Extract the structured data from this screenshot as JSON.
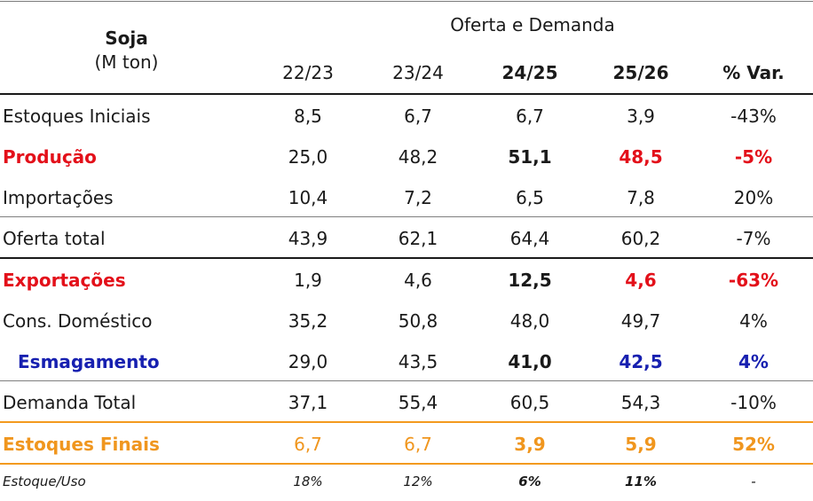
{
  "header": {
    "title": "Soja",
    "unit": "(M ton)",
    "group": "Oferta e Demanda",
    "columns": [
      "22/23",
      "23/24",
      "24/25",
      "25/26",
      "% Var."
    ]
  },
  "rows": [
    {
      "label": "Estoques Iniciais",
      "values": [
        "8,5",
        "6,7",
        "6,7",
        "3,9",
        "-43%"
      ]
    },
    {
      "label": "Produção",
      "values": [
        "25,0",
        "48,2",
        "51,1",
        "48,5",
        "-5%"
      ]
    },
    {
      "label": "Importações",
      "values": [
        "10,4",
        "7,2",
        "6,5",
        "7,8",
        "20%"
      ]
    },
    {
      "label": "Oferta total",
      "values": [
        "43,9",
        "62,1",
        "64,4",
        "60,2",
        "-7%"
      ]
    },
    {
      "label": "Exportações",
      "values": [
        "1,9",
        "4,6",
        "12,5",
        "4,6",
        "-63%"
      ]
    },
    {
      "label": "Cons. Doméstico",
      "values": [
        "35,2",
        "50,8",
        "48,0",
        "49,7",
        "4%"
      ]
    },
    {
      "label": "Esmagamento",
      "values": [
        "29,0",
        "43,5",
        "41,0",
        "42,5",
        "4%"
      ]
    },
    {
      "label": "Demanda Total",
      "values": [
        "37,1",
        "55,4",
        "60,5",
        "54,3",
        "-10%"
      ]
    },
    {
      "label": "Estoques Finais",
      "values": [
        "6,7",
        "6,7",
        "3,9",
        "5,9",
        "52%"
      ]
    },
    {
      "label": "Estoque/Uso",
      "values": [
        "18%",
        "12%",
        "6%",
        "11%",
        "-"
      ]
    }
  ],
  "colors": {
    "red": "#e3101a",
    "blue": "#1720b0",
    "orange": "#f0961e",
    "text": "#1a1a1a"
  }
}
